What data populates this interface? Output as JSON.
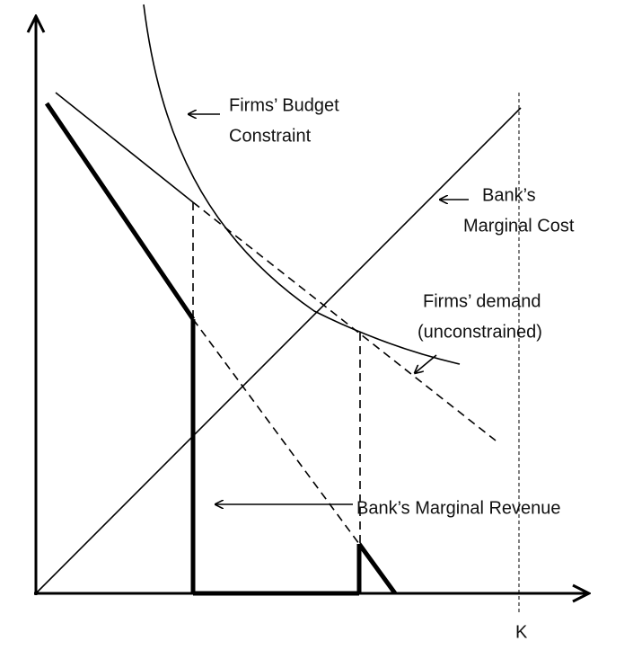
{
  "labels": {
    "budget_constraint": [
      "Firms’ Budget",
      "Constraint"
    ],
    "marginal_cost": [
      "Bank’s",
      "Marginal Cost"
    ],
    "demand": [
      "Firms’ demand",
      "(unconstrained)"
    ],
    "marginal_revenue": "Bank’s Marginal Revenue",
    "k_axis": "K"
  }
}
